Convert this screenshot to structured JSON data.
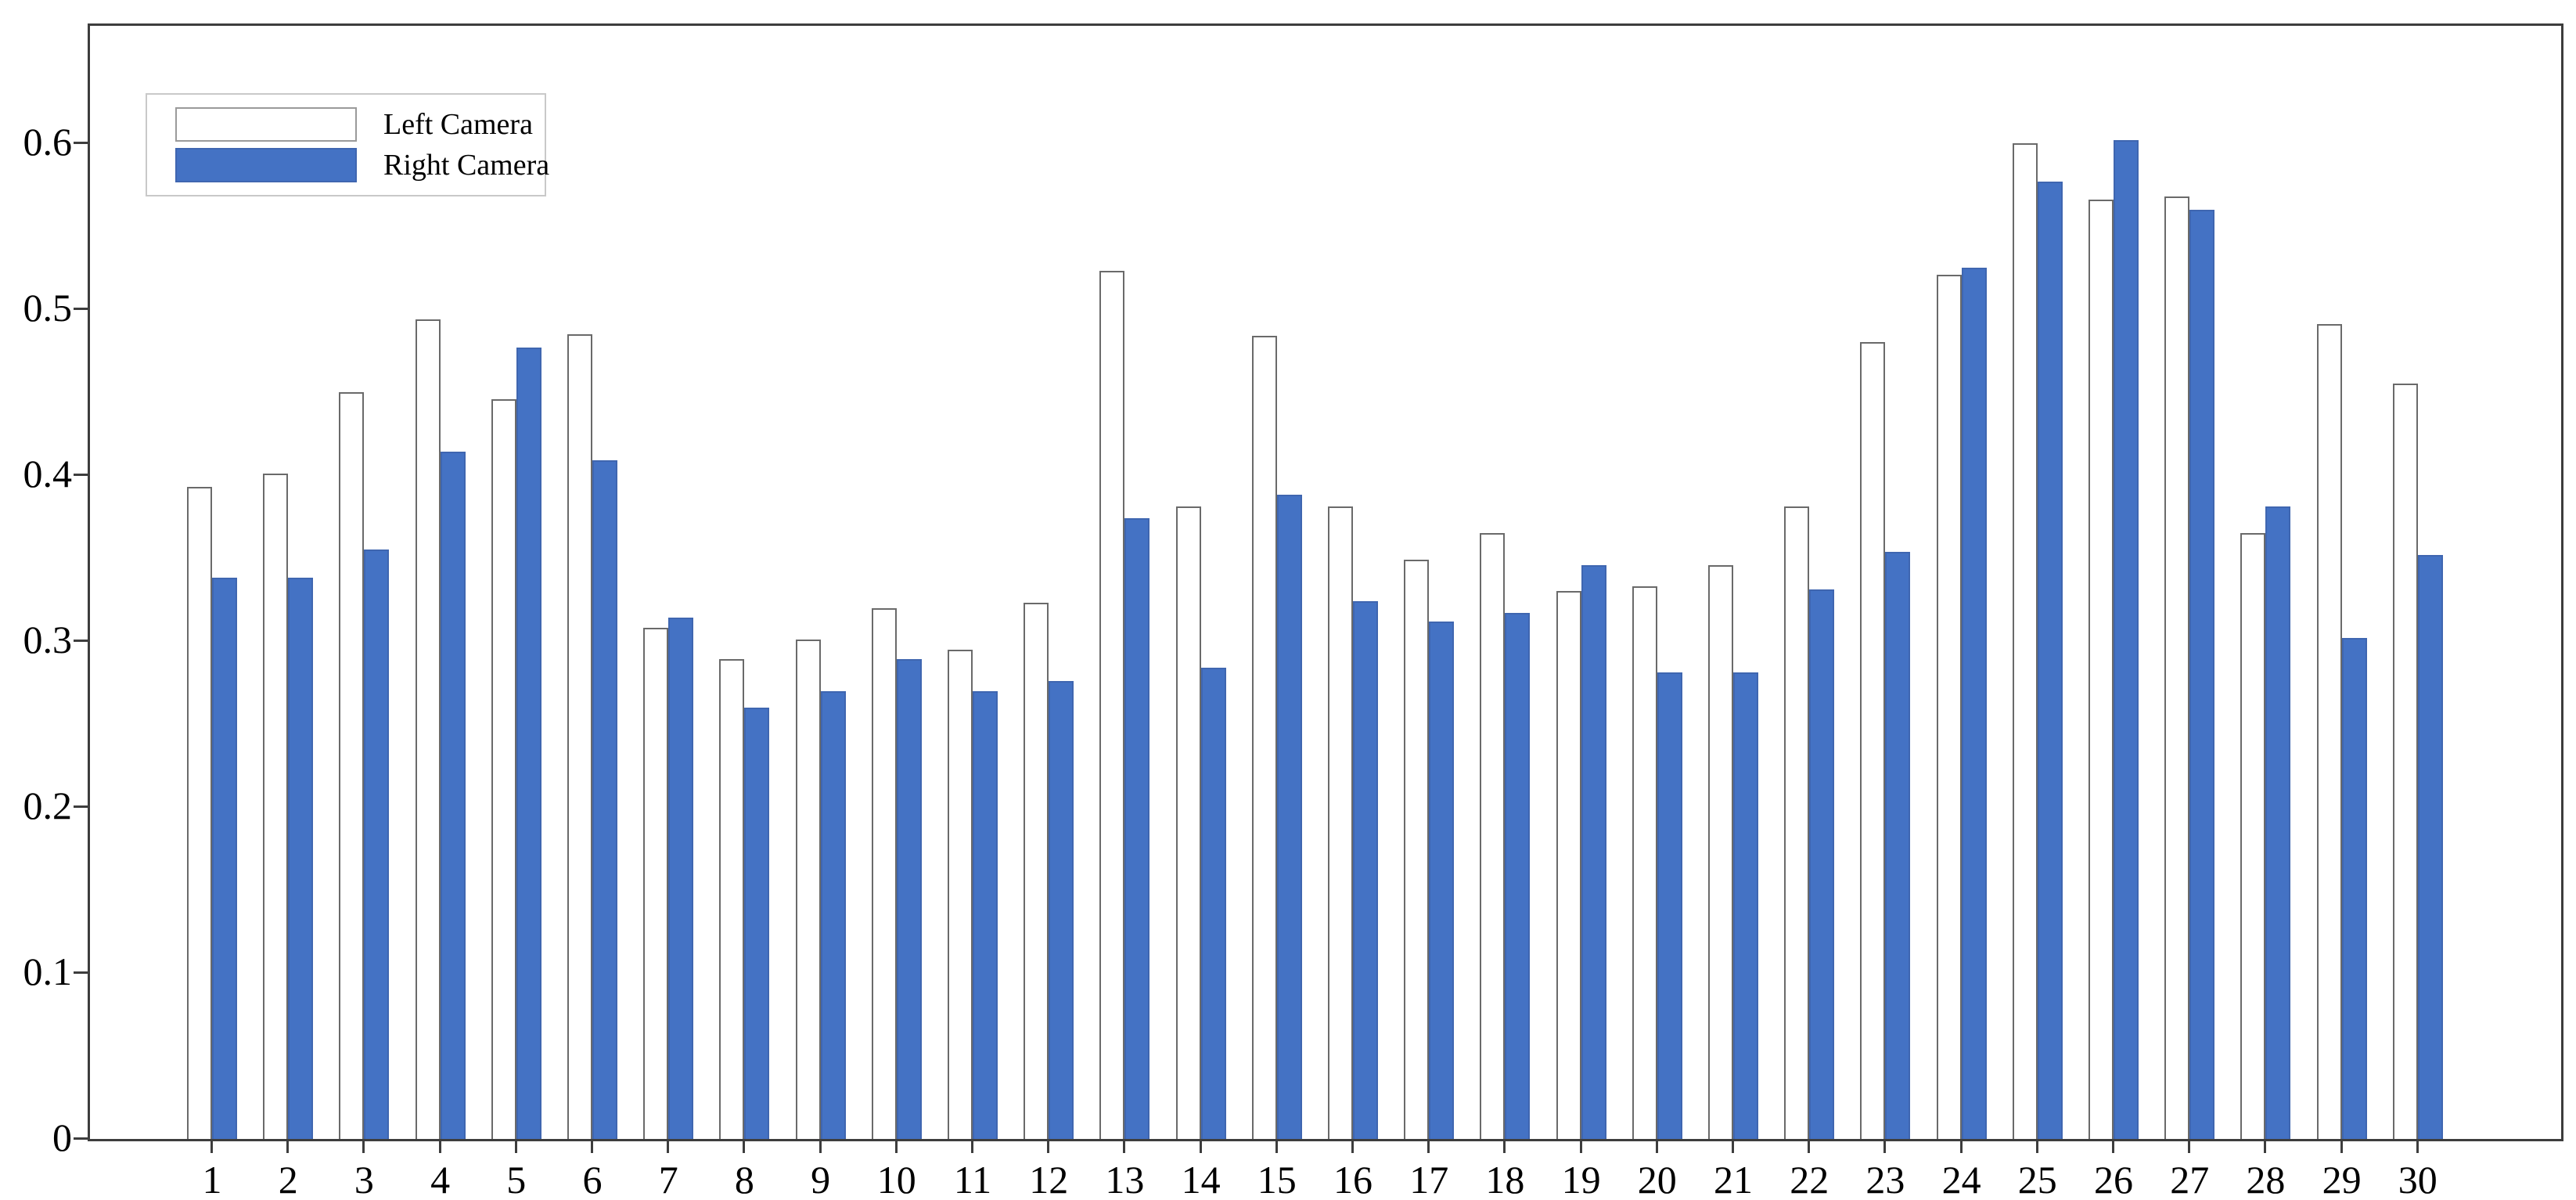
{
  "chart_data": {
    "type": "bar",
    "title": "",
    "xlabel": "",
    "ylabel": "",
    "categories": [
      "1",
      "2",
      "3",
      "4",
      "5",
      "6",
      "7",
      "8",
      "9",
      "10",
      "11",
      "12",
      "13",
      "14",
      "15",
      "16",
      "17",
      "18",
      "19",
      "20",
      "21",
      "22",
      "23",
      "24",
      "25",
      "26",
      "27",
      "28",
      "29",
      "30"
    ],
    "series": [
      {
        "name": "Left Camera",
        "fill_color": "#ffffff",
        "edge_color": "#6a6a6a",
        "values": [
          0.393,
          0.401,
          0.45,
          0.494,
          0.446,
          0.485,
          0.308,
          0.289,
          0.301,
          0.32,
          0.295,
          0.323,
          0.523,
          0.381,
          0.484,
          0.381,
          0.349,
          0.365,
          0.33,
          0.333,
          0.346,
          0.381,
          0.48,
          0.521,
          0.6,
          0.566,
          0.568,
          0.365,
          0.491,
          0.455
        ]
      },
      {
        "name": "Right Camera",
        "fill_color": "#4472c4",
        "edge_color": "#3f66b0",
        "values": [
          0.338,
          0.338,
          0.355,
          0.414,
          0.477,
          0.409,
          0.314,
          0.26,
          0.27,
          0.289,
          0.27,
          0.276,
          0.374,
          0.284,
          0.388,
          0.324,
          0.312,
          0.317,
          0.346,
          0.281,
          0.281,
          0.331,
          0.354,
          0.525,
          0.577,
          0.602,
          0.56,
          0.381,
          0.302,
          0.352
        ]
      }
    ],
    "yticks": [
      0,
      0.1,
      0.2,
      0.3,
      0.4,
      0.5,
      0.6
    ],
    "ytick_labels": [
      "0",
      "0.1",
      "0.2",
      "0.3",
      "0.4",
      "0.5",
      "0.6"
    ],
    "ylim": [
      0,
      0.6708
    ],
    "grid": false,
    "legend_position": "top-left",
    "spine_color": "#3d3d3d",
    "background_color": "#ffffff"
  }
}
